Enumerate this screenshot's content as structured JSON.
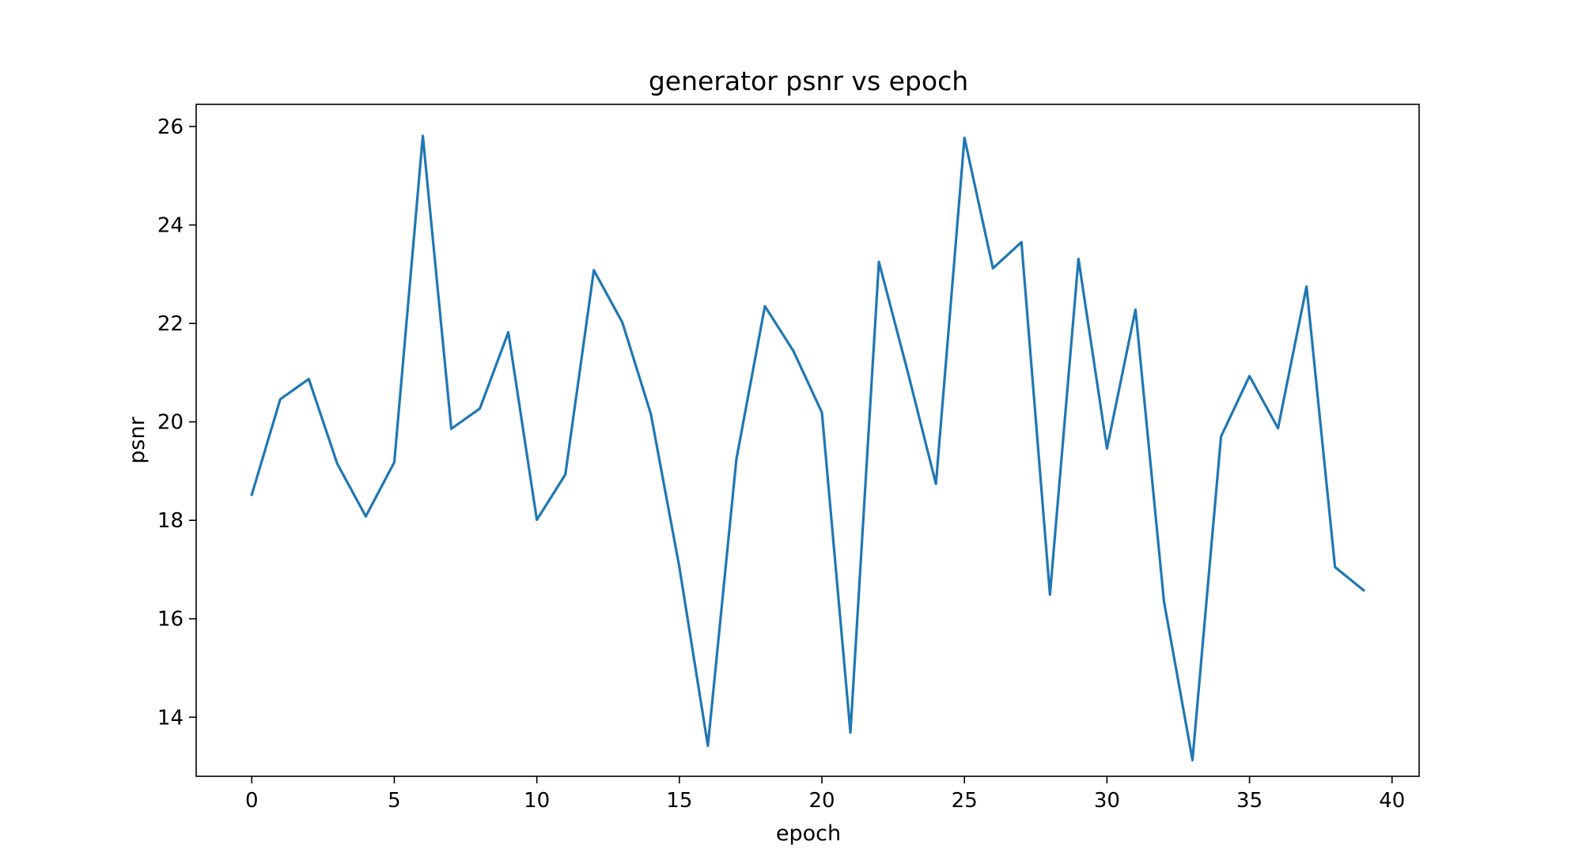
{
  "chart_data": {
    "type": "line",
    "title": "generator psnr vs epoch",
    "xlabel": "epoch",
    "ylabel": "psnr",
    "xlim": [
      -1.95,
      40.95
    ],
    "ylim": [
      12.8,
      26.45
    ],
    "xticks": [
      0,
      5,
      10,
      15,
      20,
      25,
      30,
      35,
      40
    ],
    "yticks": [
      14,
      16,
      18,
      20,
      22,
      24,
      26
    ],
    "grid": false,
    "series": [
      {
        "color": "#1f77b4",
        "x": [
          0,
          1,
          2,
          3,
          4,
          5,
          6,
          7,
          8,
          9,
          10,
          11,
          12,
          13,
          14,
          15,
          16,
          17,
          18,
          19,
          20,
          21,
          22,
          23,
          24,
          25,
          26,
          27,
          28,
          29,
          30,
          31,
          32,
          33,
          34,
          35,
          36,
          37,
          38,
          39
        ],
        "y": [
          18.52,
          20.46,
          20.87,
          19.15,
          18.08,
          19.18,
          25.81,
          19.86,
          20.27,
          21.82,
          18.01,
          18.93,
          23.08,
          22.02,
          20.16,
          17.05,
          13.42,
          19.24,
          22.35,
          21.44,
          20.19,
          13.69,
          23.25,
          21.04,
          18.74,
          25.77,
          23.12,
          23.65,
          16.49,
          23.31,
          19.46,
          22.28,
          16.35,
          13.13,
          19.7,
          20.93,
          19.87,
          22.75,
          17.05,
          16.58
        ]
      }
    ]
  }
}
